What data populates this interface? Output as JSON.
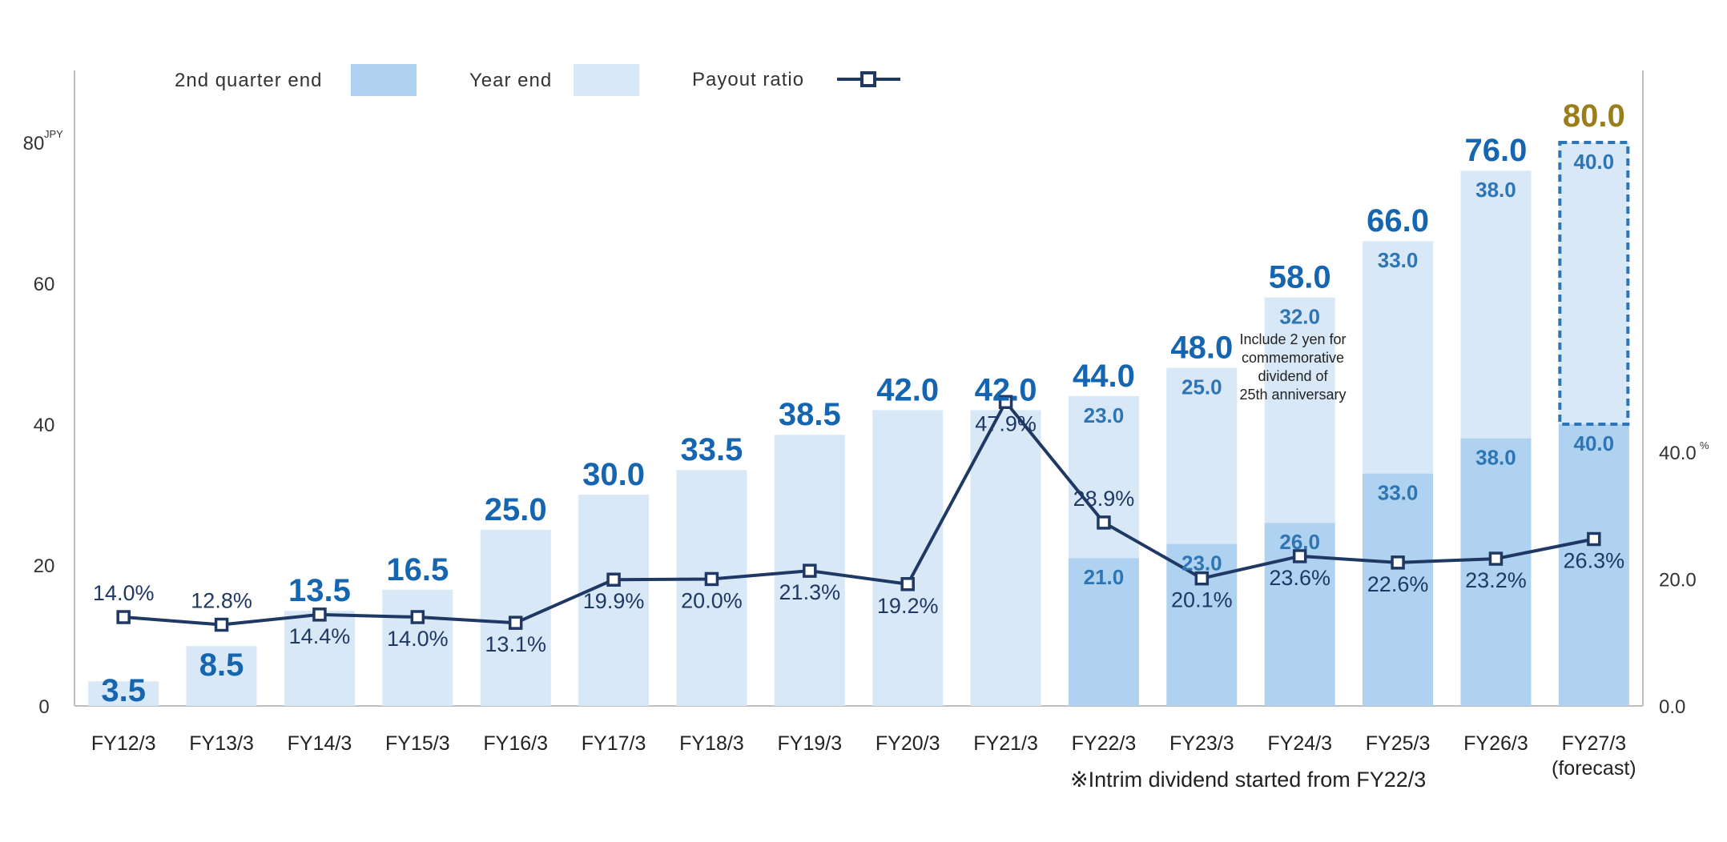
{
  "chart_data": {
    "type": "bar",
    "stacked": true,
    "title": "",
    "categories": [
      "FY12/3",
      "FY13/3",
      "FY14/3",
      "FY15/3",
      "FY16/3",
      "FY17/3",
      "FY18/3",
      "FY19/3",
      "FY20/3",
      "FY21/3",
      "FY22/3",
      "FY23/3",
      "FY24/3",
      "FY25/3",
      "FY26/3",
      "FY27/3"
    ],
    "category_sublabels": [
      "",
      "",
      "",
      "",
      "",
      "",
      "",
      "",
      "",
      "",
      "",
      "",
      "",
      "",
      "",
      "(forecast)"
    ],
    "series": [
      {
        "name": "2nd quarter end",
        "type": "bar",
        "values": [
          0,
          0,
          0,
          0,
          0,
          0,
          0,
          0,
          0,
          0,
          21.0,
          23.0,
          26.0,
          33.0,
          38.0,
          40.0
        ],
        "labels": [
          "",
          "",
          "",
          "",
          "",
          "",
          "",
          "",
          "",
          "",
          "21.0",
          "23.0",
          "26.0",
          "33.0",
          "38.0",
          "40.0"
        ]
      },
      {
        "name": "Year end",
        "type": "bar",
        "values": [
          3.5,
          8.5,
          13.5,
          16.5,
          25.0,
          30.0,
          33.5,
          38.5,
          42.0,
          42.0,
          23.0,
          25.0,
          32.0,
          33.0,
          38.0,
          40.0
        ],
        "labels": [
          "",
          "",
          "",
          "",
          "",
          "",
          "",
          "",
          "",
          "",
          "23.0",
          "25.0",
          "32.0",
          "33.0",
          "38.0",
          "40.0"
        ]
      },
      {
        "name": "Payout ratio",
        "type": "line",
        "axis": "right",
        "values": [
          14.0,
          12.8,
          14.4,
          14.0,
          13.1,
          19.9,
          20.0,
          21.3,
          19.2,
          47.9,
          28.9,
          20.1,
          23.6,
          22.6,
          23.2,
          26.3
        ],
        "labels": [
          "14.0%",
          "12.8%",
          "14.4%",
          "14.0%",
          "13.1%",
          "19.9%",
          "20.0%",
          "21.3%",
          "19.2%",
          "47.9%",
          "28.9%",
          "20.1%",
          "23.6%",
          "22.6%",
          "23.2%",
          "26.3%"
        ]
      }
    ],
    "totals": [
      3.5,
      8.5,
      13.5,
      16.5,
      25.0,
      30.0,
      33.5,
      38.5,
      42.0,
      42.0,
      44.0,
      48.0,
      58.0,
      66.0,
      76.0,
      80.0
    ],
    "total_labels": [
      "3.5",
      "8.5",
      "13.5",
      "16.5",
      "25.0",
      "30.0",
      "33.5",
      "38.5",
      "42.0",
      "42.0",
      "44.0",
      "48.0",
      "58.0",
      "66.0",
      "76.0",
      "80.0"
    ],
    "forecast_index": 15,
    "y_left": {
      "range": [
        0,
        80
      ],
      "ticks": [
        "0",
        "20",
        "40",
        "60",
        "80"
      ],
      "unit": "JPY"
    },
    "y_right": {
      "range": [
        0,
        88.8
      ],
      "ticks": [
        "0.0",
        "20.0",
        "40.0"
      ],
      "unit": "%"
    },
    "legend": {
      "position": "top",
      "items": [
        {
          "label": "2nd quarter end",
          "symbol": "bar-dark"
        },
        {
          "label": "Year end",
          "symbol": "bar-light"
        },
        {
          "label": "Payout ratio",
          "symbol": "line-square"
        }
      ]
    },
    "annotations": {
      "fy24_note": [
        "Include 2 yen for",
        "commemorative",
        "dividend of",
        "25th anniversary"
      ],
      "footnote": "※Intrim dividend started from FY22/3"
    },
    "grid": false,
    "colors": {
      "q2_bar": "#aed2ef",
      "year_end_bar": "#d8e8f7",
      "line": "#1f3864",
      "total_label": "#1565b0",
      "segment_label": "#2e75b6",
      "forecast_total": "#9a7e1a",
      "forecast_border": "#2e75b6",
      "axis": "#bfbfbf"
    }
  }
}
